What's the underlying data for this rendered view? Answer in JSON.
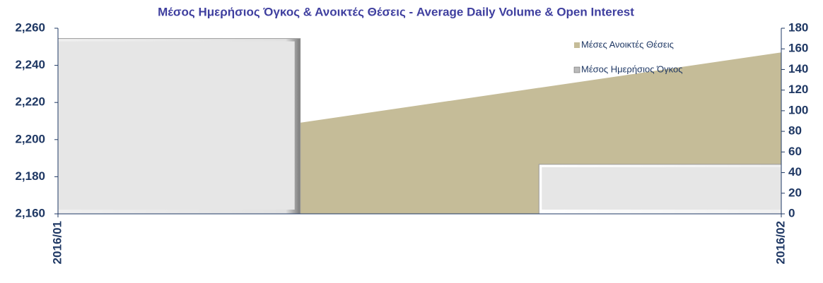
{
  "chart_data": {
    "type": "combo",
    "title": "Μέσος Ημερήσιος Όγκος & Ανοικτές Θέσεις - Average Daily Volume & Open Interest",
    "categories": [
      "2016/01",
      "2016/02"
    ],
    "series": [
      {
        "name": "Μέσες Ανοικτές Θέσεις",
        "type": "area",
        "axis": "y",
        "color": "#c5bc98",
        "values": [
          2190,
          2247
        ]
      },
      {
        "name": "Μέσος Ημερήσιος Όγκος",
        "type": "bar",
        "axis": "y2",
        "color": "#e6e6e6",
        "values": [
          170,
          48
        ]
      }
    ],
    "ylim": [
      2160,
      2260
    ],
    "yticks": [
      {
        "value": 2160,
        "label": "2,160"
      },
      {
        "value": 2180,
        "label": "2,180"
      },
      {
        "value": 2200,
        "label": "2,200"
      },
      {
        "value": 2220,
        "label": "2,220"
      },
      {
        "value": 2240,
        "label": "2,240"
      },
      {
        "value": 2260,
        "label": "2,260"
      }
    ],
    "y2lim": [
      0,
      180
    ],
    "y2ticks": [
      0,
      20,
      40,
      60,
      80,
      100,
      120,
      140,
      160,
      180
    ],
    "legend": "top-right"
  }
}
